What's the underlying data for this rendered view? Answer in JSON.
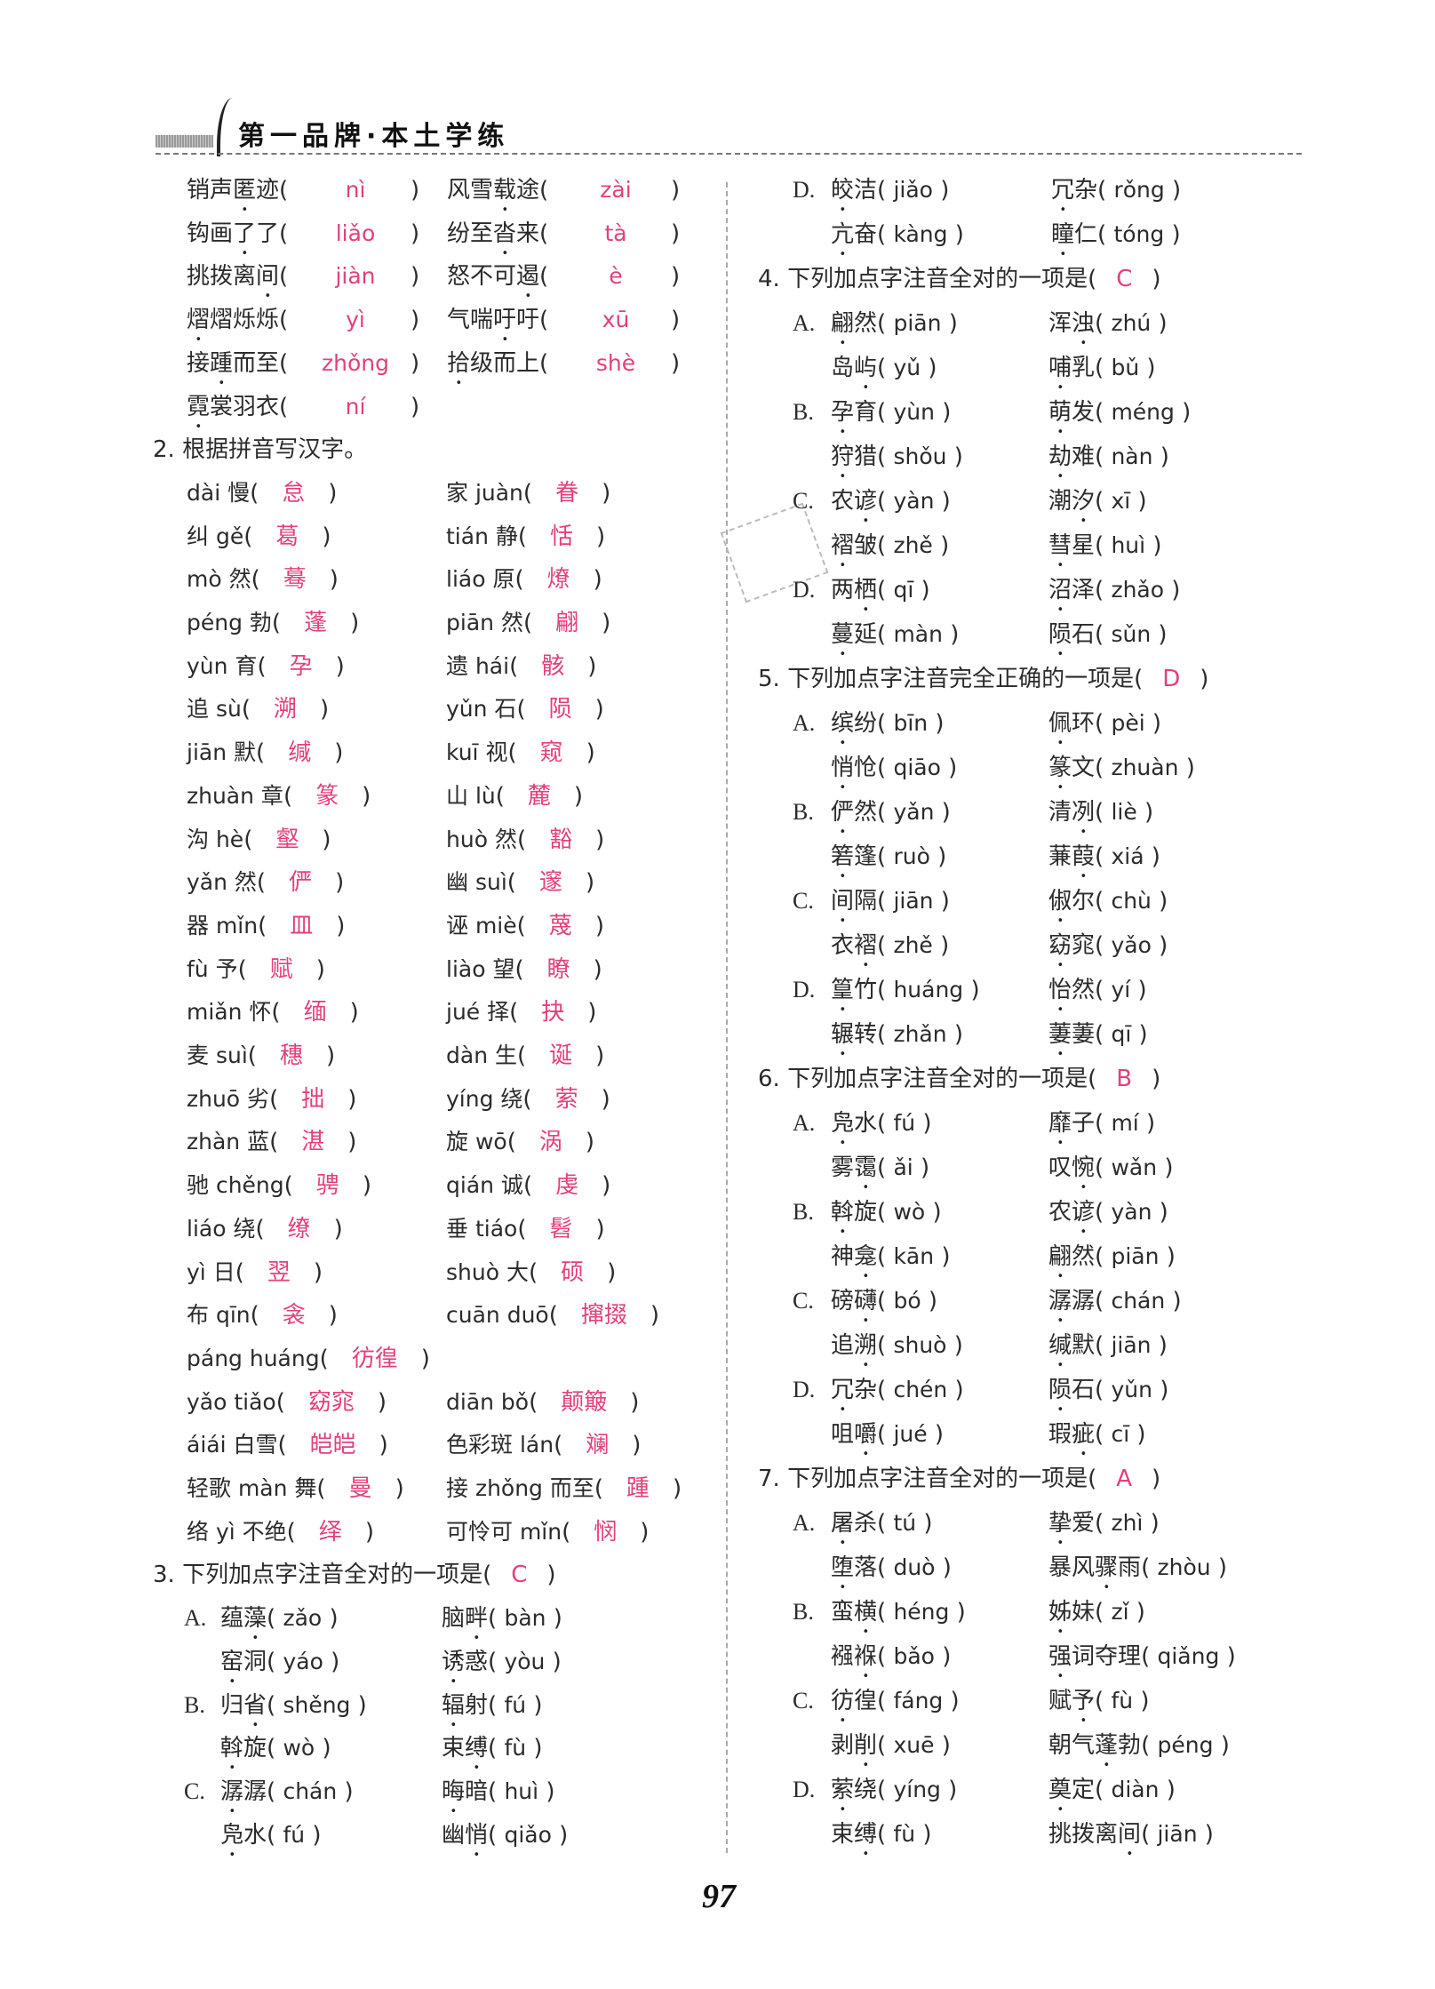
{
  "header": {
    "title": "第一品牌·本土学练"
  },
  "page_number": "97",
  "colors": {
    "answer": "#e3407c",
    "text": "#2b2b2b"
  },
  "q1": {
    "rows": [
      [
        {
          "word": "销声匿迹",
          "dot": 2,
          "answer": "nì"
        },
        {
          "word": "风雪载途",
          "dot": 2,
          "answer": "zài"
        }
      ],
      [
        {
          "word": "钩画了了",
          "dot": 2,
          "answer": "liǎo"
        },
        {
          "word": "纷至沓来",
          "dot": 2,
          "answer": "tà"
        }
      ],
      [
        {
          "word": "挑拨离间",
          "dot": 3,
          "answer": "jiàn"
        },
        {
          "word": "怒不可遏",
          "dot": 3,
          "answer": "è"
        }
      ],
      [
        {
          "word": "熠熠烁烁",
          "dot": 0,
          "answer": "yì"
        },
        {
          "word": "气喘吁吁",
          "dot": 2,
          "answer": "xū"
        }
      ],
      [
        {
          "word": "接踵而至",
          "dot": 1,
          "answer": "zhǒng"
        },
        {
          "word": "拾级而上",
          "dot": 0,
          "answer": "shè"
        }
      ],
      [
        {
          "word": "霓裳羽衣",
          "dot": 0,
          "answer": "ní"
        }
      ]
    ]
  },
  "q2": {
    "title": "2. 根据拼音写汉字。",
    "rows": [
      [
        {
          "prompt": "dài 慢",
          "answer": "怠"
        },
        {
          "prompt": "家 juàn",
          "answer": "眷"
        }
      ],
      [
        {
          "prompt": "纠 gě",
          "answer": "葛"
        },
        {
          "prompt": "tián 静",
          "answer": "恬"
        }
      ],
      [
        {
          "prompt": "mò 然",
          "answer": "蓦"
        },
        {
          "prompt": "liáo 原",
          "answer": "燎"
        }
      ],
      [
        {
          "prompt": "péng 勃",
          "answer": "蓬"
        },
        {
          "prompt": "piān 然",
          "answer": "翩"
        }
      ],
      [
        {
          "prompt": "yùn 育",
          "answer": "孕"
        },
        {
          "prompt": "遗 hái",
          "answer": "骸"
        }
      ],
      [
        {
          "prompt": "追 sù",
          "answer": "溯"
        },
        {
          "prompt": "yǔn 石",
          "answer": "陨"
        }
      ],
      [
        {
          "prompt": "jiān 默",
          "answer": "缄"
        },
        {
          "prompt": "kuī 视",
          "answer": "窥"
        }
      ],
      [
        {
          "prompt": "zhuàn 章",
          "answer": "篆"
        },
        {
          "prompt": "山 lù",
          "answer": "麓"
        }
      ],
      [
        {
          "prompt": "沟 hè",
          "answer": "壑"
        },
        {
          "prompt": "huò 然",
          "answer": "豁"
        }
      ],
      [
        {
          "prompt": "yǎn 然",
          "answer": "俨"
        },
        {
          "prompt": "幽 suì",
          "answer": "邃"
        }
      ],
      [
        {
          "prompt": "器 mǐn",
          "answer": "皿"
        },
        {
          "prompt": "诬 miè",
          "answer": "蔑"
        }
      ],
      [
        {
          "prompt": "fù 予",
          "answer": "赋"
        },
        {
          "prompt": "liào 望",
          "answer": "瞭"
        }
      ],
      [
        {
          "prompt": "miǎn 怀",
          "answer": "缅"
        },
        {
          "prompt": "jué 择",
          "answer": "抉"
        }
      ],
      [
        {
          "prompt": "麦 suì",
          "answer": "穗"
        },
        {
          "prompt": "dàn 生",
          "answer": "诞"
        }
      ],
      [
        {
          "prompt": "zhuō 劣",
          "answer": "拙"
        },
        {
          "prompt": "yíng 绕",
          "answer": "萦"
        }
      ],
      [
        {
          "prompt": "zhàn 蓝",
          "answer": "湛"
        },
        {
          "prompt": "旋 wō",
          "answer": "涡"
        }
      ],
      [
        {
          "prompt": "驰 chěng",
          "answer": "骋"
        },
        {
          "prompt": "qián 诚",
          "answer": "虔"
        }
      ],
      [
        {
          "prompt": "liáo 绕",
          "answer": "缭"
        },
        {
          "prompt": "垂 tiáo",
          "answer": "髫"
        }
      ],
      [
        {
          "prompt": "yì 日",
          "answer": "翌"
        },
        {
          "prompt": "shuò 大",
          "answer": "硕"
        }
      ],
      [
        {
          "prompt": "布 qīn",
          "answer": "衾"
        },
        {
          "prompt": "cuān duō",
          "answer": "撺掇"
        }
      ],
      [
        {
          "prompt": "páng huáng",
          "answer": "彷徨"
        }
      ],
      [
        {
          "prompt": "yǎo tiǎo",
          "answer": "窈窕"
        },
        {
          "prompt": "diān bǒ",
          "answer": "颠簸"
        }
      ],
      [
        {
          "prompt": "áiái 白雪",
          "answer": "皑皑"
        },
        {
          "prompt": "色彩斑 lán",
          "answer": "斓"
        }
      ],
      [
        {
          "prompt": "轻歌 màn 舞",
          "answer": "曼"
        },
        {
          "prompt": "接 zhǒng 而至",
          "answer": "踵"
        }
      ],
      [
        {
          "prompt": "络 yì 不绝",
          "answer": "绎"
        },
        {
          "prompt": "可怜可 mǐn",
          "answer": "悯"
        }
      ]
    ]
  },
  "questions": [
    {
      "num": "3.",
      "stem": "下列加点字注音全对的一项是(",
      "answer": "C",
      "options": [
        {
          "letter": "A.",
          "items": [
            {
              "w": "蕴藻",
              "d": 1,
              "p": "zǎo"
            },
            {
              "w": "脑畔",
              "d": 1,
              "p": "bàn"
            },
            {
              "w": "窑洞",
              "d": 0,
              "p": "yáo"
            },
            {
              "w": "诱惑",
              "d": 0,
              "p": "yòu"
            }
          ]
        },
        {
          "letter": "B.",
          "items": [
            {
              "w": "归省",
              "d": 1,
              "p": "shěng"
            },
            {
              "w": "辐射",
              "d": 0,
              "p": "fú"
            },
            {
              "w": "斡旋",
              "d": 0,
              "p": "wò"
            },
            {
              "w": "束缚",
              "d": 1,
              "p": "fù"
            }
          ]
        },
        {
          "letter": "C.",
          "items": [
            {
              "w": "潺潺",
              "d": 0,
              "p": "chán"
            },
            {
              "w": "晦暗",
              "d": 0,
              "p": "huì"
            },
            {
              "w": "凫水",
              "d": 0,
              "p": "fú"
            },
            {
              "w": "幽悄",
              "d": 1,
              "p": "qiǎo"
            }
          ]
        },
        {
          "letter": "D.",
          "items": [
            {
              "w": "皎洁",
              "d": 0,
              "p": "jiǎo"
            },
            {
              "w": "冗杂",
              "d": 0,
              "p": "rǒng"
            },
            {
              "w": "亢奋",
              "d": 0,
              "p": "kàng"
            },
            {
              "w": "瞳仁",
              "d": 0,
              "p": "tóng"
            }
          ]
        }
      ]
    },
    {
      "num": "4.",
      "stem": "下列加点字注音全对的一项是(",
      "answer": "C",
      "options": [
        {
          "letter": "A.",
          "items": [
            {
              "w": "翩然",
              "d": 0,
              "p": "piān"
            },
            {
              "w": "浑浊",
              "d": 1,
              "p": "zhú"
            },
            {
              "w": "岛屿",
              "d": 1,
              "p": "yǔ"
            },
            {
              "w": "哺乳",
              "d": 0,
              "p": "bǔ"
            }
          ]
        },
        {
          "letter": "B.",
          "items": [
            {
              "w": "孕育",
              "d": 0,
              "p": "yùn"
            },
            {
              "w": "萌发",
              "d": 0,
              "p": "méng"
            },
            {
              "w": "狩猎",
              "d": 0,
              "p": "shǒu"
            },
            {
              "w": "劫难",
              "d": 0,
              "p": "nàn"
            }
          ]
        },
        {
          "letter": "C.",
          "items": [
            {
              "w": "农谚",
              "d": 1,
              "p": "yàn"
            },
            {
              "w": "潮汐",
              "d": 1,
              "p": "xī"
            },
            {
              "w": "褶皱",
              "d": 0,
              "p": "zhě"
            },
            {
              "w": "彗星",
              "d": 0,
              "p": "huì"
            }
          ]
        },
        {
          "letter": "D.",
          "items": [
            {
              "w": "两栖",
              "d": 1,
              "p": "qī"
            },
            {
              "w": "沼泽",
              "d": 0,
              "p": "zhǎo"
            },
            {
              "w": "蔓延",
              "d": 0,
              "p": "màn"
            },
            {
              "w": "陨石",
              "d": 0,
              "p": "sǔn"
            }
          ]
        }
      ]
    },
    {
      "num": "5.",
      "stem": "下列加点字注音完全正确的一项是(",
      "answer": "D",
      "options": [
        {
          "letter": "A.",
          "items": [
            {
              "w": "缤纷",
              "d": 0,
              "p": "bīn"
            },
            {
              "w": "佩环",
              "d": 0,
              "p": "pèi"
            },
            {
              "w": "悄怆",
              "d": 0,
              "p": "qiāo"
            },
            {
              "w": "篆文",
              "d": 0,
              "p": "zhuàn"
            }
          ]
        },
        {
          "letter": "B.",
          "items": [
            {
              "w": "俨然",
              "d": 0,
              "p": "yǎn"
            },
            {
              "w": "清冽",
              "d": 1,
              "p": "liè"
            },
            {
              "w": "箬篷",
              "d": 0,
              "p": "ruò"
            },
            {
              "w": "蒹葭",
              "d": 1,
              "p": "xiá"
            }
          ]
        },
        {
          "letter": "C.",
          "items": [
            {
              "w": "间隔",
              "d": 0,
              "p": "jiān"
            },
            {
              "w": "俶尔",
              "d": 0,
              "p": "chù"
            },
            {
              "w": "衣褶",
              "d": 1,
              "p": "zhě"
            },
            {
              "w": "窈窕",
              "d": 0,
              "p": "yǎo"
            }
          ]
        },
        {
          "letter": "D.",
          "items": [
            {
              "w": "篁竹",
              "d": 0,
              "p": "huáng"
            },
            {
              "w": "怡然",
              "d": 0,
              "p": "yí"
            },
            {
              "w": "辗转",
              "d": 0,
              "p": "zhǎn"
            },
            {
              "w": "萋萋",
              "d": 0,
              "p": "qī"
            }
          ]
        }
      ]
    },
    {
      "num": "6.",
      "stem": "下列加点字注音全对的一项是(",
      "answer": "B",
      "options": [
        {
          "letter": "A.",
          "items": [
            {
              "w": "凫水",
              "d": 0,
              "p": "fú"
            },
            {
              "w": "靡子",
              "d": 0,
              "p": "mí"
            },
            {
              "w": "雾霭",
              "d": 1,
              "p": "ǎi"
            },
            {
              "w": "叹惋",
              "d": 1,
              "p": "wǎn"
            }
          ]
        },
        {
          "letter": "B.",
          "items": [
            {
              "w": "斡旋",
              "d": 0,
              "p": "wò"
            },
            {
              "w": "农谚",
              "d": 1,
              "p": "yàn"
            },
            {
              "w": "神龛",
              "d": 1,
              "p": "kān"
            },
            {
              "w": "翩然",
              "d": 0,
              "p": "piān"
            }
          ]
        },
        {
          "letter": "C.",
          "items": [
            {
              "w": "磅礴",
              "d": 1,
              "p": "bó"
            },
            {
              "w": "潺潺",
              "d": 0,
              "p": "chán"
            },
            {
              "w": "追溯",
              "d": 1,
              "p": "shuò"
            },
            {
              "w": "缄默",
              "d": 0,
              "p": "jiān"
            }
          ]
        },
        {
          "letter": "D.",
          "items": [
            {
              "w": "冗杂",
              "d": 0,
              "p": "chén"
            },
            {
              "w": "陨石",
              "d": 0,
              "p": "yǔn"
            },
            {
              "w": "咀嚼",
              "d": 1,
              "p": "jué"
            },
            {
              "w": "瑕疵",
              "d": 1,
              "p": "cī"
            }
          ]
        }
      ]
    },
    {
      "num": "7.",
      "stem": "下列加点字注音全对的一项是(",
      "answer": "A",
      "options": [
        {
          "letter": "A.",
          "items": [
            {
              "w": "屠杀",
              "d": 0,
              "p": "tú"
            },
            {
              "w": "挚爱",
              "d": 0,
              "p": "zhì"
            },
            {
              "w": "堕落",
              "d": 0,
              "p": "duò"
            },
            {
              "w": "暴风骤雨",
              "d": 2,
              "p": "zhòu"
            }
          ]
        },
        {
          "letter": "B.",
          "items": [
            {
              "w": "蛮横",
              "d": 1,
              "p": "héng"
            },
            {
              "w": "姊妹",
              "d": 0,
              "p": "zǐ"
            },
            {
              "w": "襁褓",
              "d": 1,
              "p": "bǎo"
            },
            {
              "w": "强词夺理",
              "d": 0,
              "p": "qiǎng"
            }
          ]
        },
        {
          "letter": "C.",
          "items": [
            {
              "w": "彷徨",
              "d": 0,
              "p": "fáng"
            },
            {
              "w": "赋予",
              "d": 1,
              "p": "fù"
            },
            {
              "w": "剥削",
              "d": 1,
              "p": "xuē"
            },
            {
              "w": "朝气蓬勃",
              "d": 2,
              "p": "péng"
            }
          ]
        },
        {
          "letter": "D.",
          "items": [
            {
              "w": "萦绕",
              "d": 0,
              "p": "yíng"
            },
            {
              "w": "奠定",
              "d": 0,
              "p": "diàn"
            },
            {
              "w": "束缚",
              "d": 1,
              "p": "fù"
            },
            {
              "w": "挑拨离间",
              "d": 3,
              "p": "jiān"
            }
          ]
        }
      ]
    }
  ]
}
